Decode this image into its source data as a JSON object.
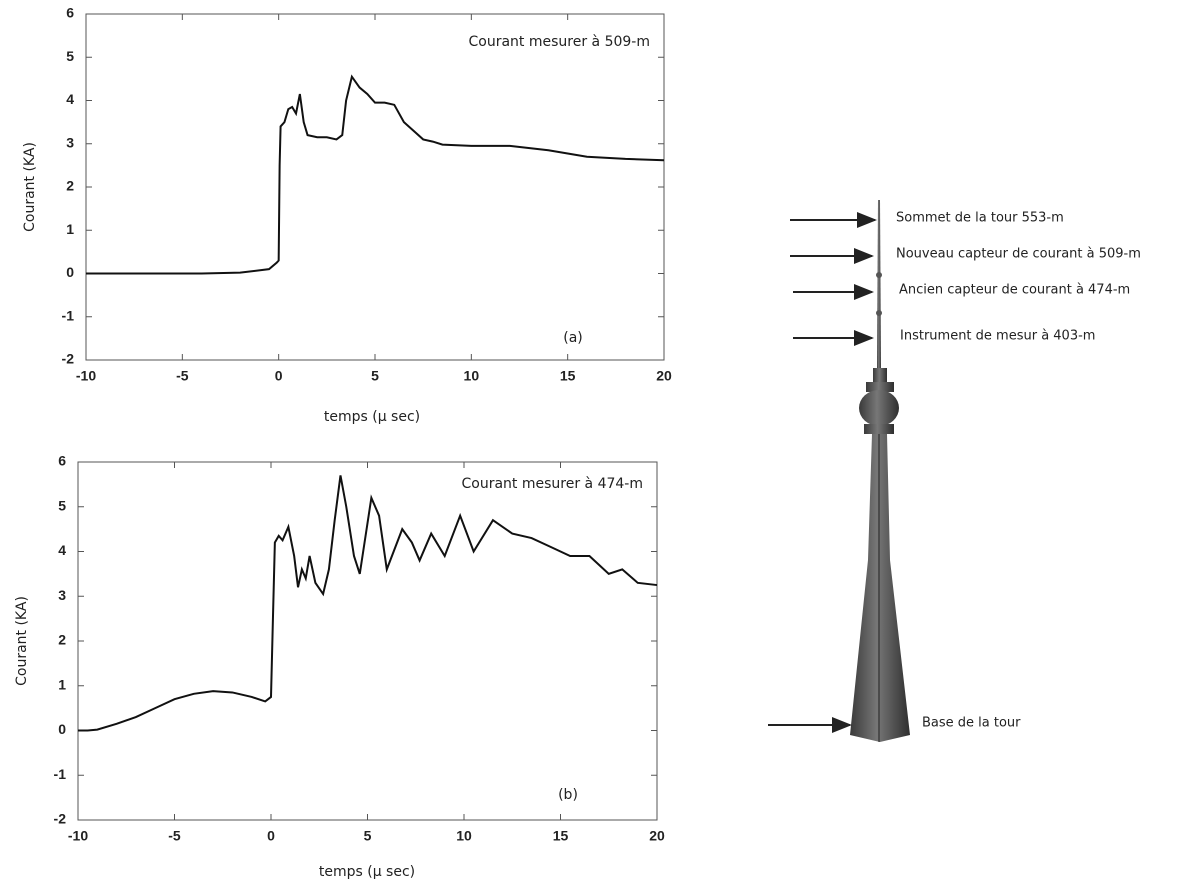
{
  "chart_data": [
    {
      "type": "line",
      "annotation": "Courant mesurer à 509-m",
      "panel_label": "(a)",
      "xlabel": "temps (µ sec)",
      "ylabel": "Courant (KA)",
      "xlim": [
        -10,
        20
      ],
      "ylim": [
        -2,
        6
      ],
      "xticks": [
        -10,
        -5,
        0,
        5,
        10,
        15,
        20
      ],
      "yticks": [
        -2,
        -1,
        0,
        1,
        2,
        3,
        4,
        5,
        6
      ],
      "x": [
        -10,
        -8,
        -6,
        -4,
        -2,
        -0.5,
        -0.1,
        0,
        0.05,
        0.1,
        0.3,
        0.5,
        0.7,
        0.9,
        1.1,
        1.3,
        1.5,
        2,
        2.5,
        3,
        3.3,
        3.5,
        3.8,
        4.2,
        4.6,
        5,
        5.5,
        6,
        6.5,
        7,
        7.5,
        8,
        8.5,
        10,
        12,
        14,
        16,
        18,
        20
      ],
      "series": [
        {
          "color": "#111111",
          "values": [
            0,
            0,
            0,
            0,
            0.02,
            0.1,
            0.25,
            0.3,
            2.5,
            3.4,
            3.5,
            3.8,
            3.85,
            3.7,
            4.15,
            3.5,
            3.2,
            3.15,
            3.15,
            3.1,
            3.2,
            4.0,
            4.55,
            4.3,
            4.15,
            3.95,
            3.95,
            3.9,
            3.5,
            3.3,
            3.1,
            3.05,
            2.98,
            2.95,
            2.95,
            2.85,
            2.7,
            2.65,
            2.62
          ]
        }
      ]
    },
    {
      "type": "line",
      "annotation": "Courant mesurer à 474-m",
      "panel_label": "(b)",
      "xlabel": "temps (µ sec)",
      "ylabel": "Courant (KA)",
      "xlim": [
        -10,
        20
      ],
      "ylim": [
        -2,
        6
      ],
      "xticks": [
        -10,
        -5,
        0,
        5,
        10,
        15,
        20
      ],
      "yticks": [
        -2,
        -1,
        0,
        1,
        2,
        3,
        4,
        5,
        6
      ],
      "x": [
        -10,
        -9.5,
        -9,
        -8,
        -7,
        -6,
        -5,
        -4,
        -3,
        -2,
        -1,
        -0.3,
        0,
        0.1,
        0.2,
        0.4,
        0.6,
        0.9,
        1.2,
        1.4,
        1.6,
        1.8,
        2,
        2.3,
        2.7,
        3,
        3.3,
        3.6,
        3.9,
        4.3,
        4.6,
        5.2,
        5.6,
        6,
        6.8,
        7.3,
        7.7,
        8.3,
        9,
        9.8,
        10.5,
        11.5,
        12.5,
        13.5,
        14.5,
        15.5,
        16.5,
        17.5,
        18.2,
        19,
        20
      ],
      "series": [
        {
          "color": "#111111",
          "values": [
            0,
            0,
            0.02,
            0.15,
            0.3,
            0.5,
            0.7,
            0.82,
            0.88,
            0.85,
            0.75,
            0.65,
            0.75,
            2.5,
            4.2,
            4.35,
            4.25,
            4.55,
            3.9,
            3.2,
            3.6,
            3.4,
            3.9,
            3.3,
            3.05,
            3.6,
            4.7,
            5.7,
            5.0,
            3.9,
            3.5,
            5.2,
            4.8,
            3.6,
            4.5,
            4.2,
            3.8,
            4.4,
            3.9,
            4.8,
            4.0,
            4.7,
            4.4,
            4.3,
            4.1,
            3.9,
            3.9,
            3.5,
            3.6,
            3.3,
            3.25
          ]
        }
      ]
    }
  ],
  "tower": {
    "labels": [
      "Sommet de la tour 553-m",
      "Nouveau capteur de courant à 509-m",
      "Ancien capteur de courant à 474-m",
      "Instrument de mesur à 403-m",
      "Base de la tour"
    ]
  }
}
